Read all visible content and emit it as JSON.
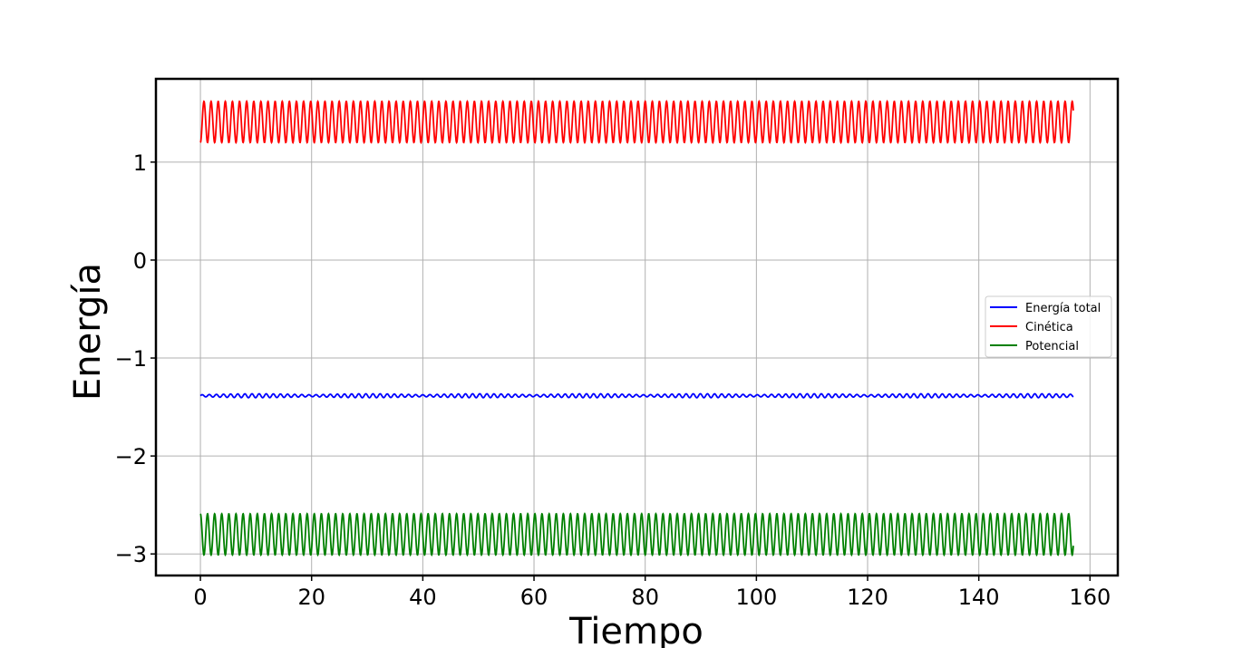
{
  "chart_data": {
    "type": "line",
    "xlabel": "Tiempo",
    "ylabel": "Energía",
    "xlim": [
      -8,
      165
    ],
    "ylim": [
      -3.22,
      1.85
    ],
    "x_ticks": [
      0,
      20,
      40,
      60,
      80,
      100,
      120,
      140,
      160
    ],
    "y_ticks": [
      -3,
      -2,
      -1,
      0,
      1
    ],
    "y_tick_labels": [
      "−3",
      "−2",
      "−1",
      "0",
      "1"
    ],
    "grid": true,
    "legend_position": "center-right",
    "x_range": [
      0,
      157
    ],
    "oscillation_period": 1.28,
    "series": [
      {
        "name": "Energía total",
        "color": "#0000ff",
        "center": -1.385,
        "amplitude": 0.02,
        "approx_values": [
          [
            0,
            -1.39
          ],
          [
            40,
            -1.385
          ],
          [
            80,
            -1.39
          ],
          [
            120,
            -1.385
          ],
          [
            157,
            -1.39
          ]
        ]
      },
      {
        "name": "Cinética",
        "color": "#ff0000",
        "center": 1.41,
        "amplitude": 0.21,
        "approx_values": [
          [
            0,
            1.2
          ],
          [
            0.64,
            1.62
          ],
          [
            1.28,
            1.2
          ],
          [
            157,
            1.2
          ]
        ]
      },
      {
        "name": "Potencial",
        "color": "#008000",
        "center": -2.8,
        "amplitude": 0.21,
        "approx_values": [
          [
            0,
            -2.59
          ],
          [
            0.64,
            -3.01
          ],
          [
            1.28,
            -2.59
          ],
          [
            157,
            -2.59
          ]
        ]
      }
    ]
  }
}
